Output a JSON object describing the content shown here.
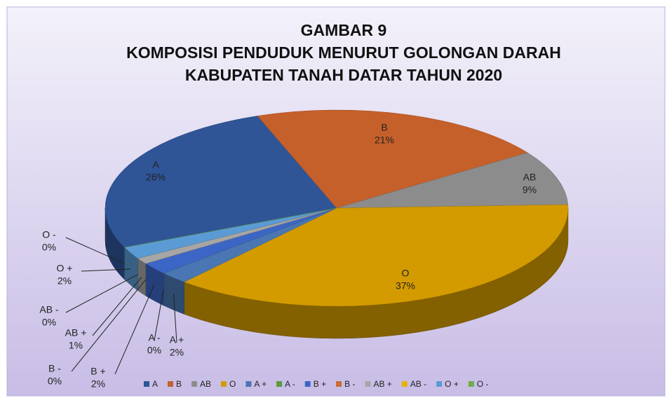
{
  "chart_data": {
    "type": "pie",
    "title": [
      "GAMBAR 9",
      "KOMPOSISI PENDUDUK MENURUT GOLONGAN DARAH",
      "KABUPATEN TANAH DATAR TAHUN 2020"
    ],
    "categories": [
      "A",
      "B",
      "AB",
      "O",
      "A +",
      "A -",
      "B +",
      "B -",
      "AB +",
      "AB -",
      "O +",
      "O -"
    ],
    "values": [
      26,
      21,
      9,
      37,
      2,
      0,
      2,
      0,
      1,
      0,
      2,
      0
    ],
    "value_labels": [
      "26%",
      "21%",
      "9%",
      "37%",
      "2%",
      "0%",
      "2%",
      "0%",
      "1%",
      "0%",
      "2%",
      "0%"
    ],
    "colors": [
      "#2f5597",
      "#c5602a",
      "#8c8c8c",
      "#d39b00",
      "#4a77b3",
      "#5b9a3b",
      "#3c66c5",
      "#c96c33",
      "#a6a6a6",
      "#e6b400",
      "#5b9bd5",
      "#70ad47"
    ],
    "legend": "bottom"
  }
}
